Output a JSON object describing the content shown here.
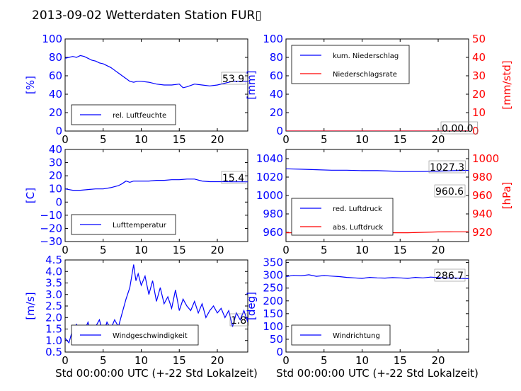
{
  "title": "2013-09-02 Wetterdaten Station FUR▯",
  "xlabel": "Std 00:00:00 UTC (+-22 Std Lokalzeit)",
  "colors": {
    "blue": "#0000ff",
    "red": "#ff0000",
    "axis": "#000000"
  },
  "chart_data": [
    {
      "type": "line",
      "id": "humidity",
      "ylabel": "[%]",
      "xlim": [
        0,
        24
      ],
      "ylim": [
        0,
        100
      ],
      "xticks": [
        "0",
        "5",
        "10",
        "15",
        "20"
      ],
      "yticks": [
        "0",
        "20",
        "40",
        "60",
        "80",
        "100"
      ],
      "legend": [
        "rel. Luftfeuchte"
      ],
      "legend_position": "lower-left",
      "annotation": "53.9",
      "series": [
        {
          "name": "rel. Luftfeuchte",
          "color": "#0000ff",
          "x": [
            0,
            0.5,
            1,
            1.5,
            2,
            2.5,
            3,
            3.5,
            4,
            4.5,
            5,
            5.5,
            6,
            6.5,
            7,
            7.5,
            8,
            8.5,
            9,
            9.5,
            10,
            11,
            12,
            13,
            14,
            15,
            15.5,
            16,
            17,
            18,
            19,
            20,
            21,
            22,
            23,
            24
          ],
          "y": [
            79,
            80,
            81,
            80,
            82,
            81,
            79,
            77,
            76,
            74,
            73,
            71,
            69,
            66,
            63,
            60,
            57,
            54,
            53,
            54,
            54,
            53,
            51,
            50,
            50,
            51,
            47,
            48,
            51,
            50,
            49,
            50,
            52,
            54,
            54,
            54
          ]
        }
      ]
    },
    {
      "type": "line",
      "id": "precip",
      "ylabel": "[mm]",
      "ylabel_right": "[mm/std]",
      "xlim": [
        0,
        24
      ],
      "ylim": [
        0,
        100
      ],
      "ylim_right": [
        0,
        50
      ],
      "xticks": [
        "0",
        "5",
        "10",
        "15",
        "20"
      ],
      "yticks": [
        "0",
        "20",
        "40",
        "60",
        "80",
        "100"
      ],
      "yticks_right": [
        "0",
        "10",
        "20",
        "30",
        "40",
        "50"
      ],
      "legend": [
        "kum. Niederschlag",
        "Niederschlagsrate"
      ],
      "legend_position": "top-left",
      "annotation": "0.00.0",
      "series": [
        {
          "name": "kum. Niederschlag",
          "color": "#0000ff",
          "x": [
            0,
            24
          ],
          "y": [
            0,
            0
          ]
        },
        {
          "name": "Niederschlagsrate",
          "color": "#ff0000",
          "x": [
            0,
            24
          ],
          "y": [
            0,
            0
          ]
        }
      ]
    },
    {
      "type": "line",
      "id": "temperature",
      "ylabel": "[C]",
      "xlim": [
        0,
        24
      ],
      "ylim": [
        -30,
        40
      ],
      "xticks": [
        "0",
        "5",
        "10",
        "15",
        "20"
      ],
      "yticks": [
        "−30",
        "−20",
        "−10",
        "0",
        "10",
        "20",
        "30",
        "40"
      ],
      "legend": [
        "Lufttemperatur"
      ],
      "legend_position": "lower-left",
      "annotation": "15.4",
      "series": [
        {
          "name": "Lufttemperatur",
          "color": "#0000ff",
          "x": [
            0,
            1,
            2,
            3,
            4,
            5,
            6,
            7,
            7.5,
            8,
            8.5,
            9,
            10,
            11,
            12,
            13,
            14,
            15,
            16,
            17,
            18,
            19,
            20,
            21,
            22,
            23,
            24
          ],
          "y": [
            10,
            9,
            9,
            9.5,
            10,
            10,
            11,
            12.5,
            14,
            16,
            15,
            16,
            16,
            16,
            16.5,
            16.5,
            17,
            17,
            17.5,
            17.5,
            16,
            15.5,
            15.5,
            15.5,
            15.4,
            15.4,
            15.4
          ]
        }
      ]
    },
    {
      "type": "line",
      "id": "pressure",
      "ylabel_right": "[hPa]",
      "xlim": [
        0,
        24
      ],
      "ylim": [
        950,
        1050
      ],
      "ylim_right": [
        910,
        1010
      ],
      "xticks": [
        "0",
        "5",
        "10",
        "15",
        "20"
      ],
      "yticks": [
        "960",
        "980",
        "1000",
        "1020",
        "1040"
      ],
      "yticks_right": [
        "920",
        "940",
        "960",
        "980",
        "1000"
      ],
      "legend": [
        "red. Luftdruck",
        "abs. Luftdruck"
      ],
      "legend_position": "lower-left",
      "annotation": "1027.3",
      "annotation2": "960.6",
      "series": [
        {
          "name": "red. Luftdruck",
          "color": "#0000ff",
          "x": [
            0,
            2,
            4,
            6,
            8,
            10,
            12,
            14,
            15,
            16,
            18,
            20,
            22,
            24
          ],
          "y": [
            1029,
            1028.5,
            1028,
            1027.5,
            1027.5,
            1027,
            1027,
            1026.5,
            1026,
            1026,
            1026,
            1026.5,
            1027,
            1027.3
          ]
        },
        {
          "name": "abs. Luftdruck",
          "color": "#ff0000",
          "x": [
            0,
            2,
            4,
            6,
            8,
            10,
            12,
            14,
            16,
            18,
            20,
            22,
            24
          ],
          "y": [
            959.5,
            959.5,
            959.5,
            959.5,
            960,
            960,
            959.5,
            959.5,
            959.5,
            960,
            960.5,
            960.6,
            960.6
          ]
        }
      ]
    },
    {
      "type": "line",
      "id": "wind",
      "ylabel": "[m/s]",
      "xlim": [
        0,
        24
      ],
      "ylim": [
        0.5,
        4.5
      ],
      "xticks": [
        "0",
        "5",
        "10",
        "15",
        "20"
      ],
      "yticks": [
        "0.5",
        "1.0",
        "1.5",
        "2.0",
        "2.5",
        "3.0",
        "3.5",
        "4.0",
        "4.5"
      ],
      "legend": [
        "Windgeschwindigkeit"
      ],
      "legend_position": "lower-left",
      "annotation": "1.8",
      "series": [
        {
          "name": "Windgeschwindigkeit",
          "color": "#0000ff",
          "x": [
            0,
            0.5,
            1,
            1.5,
            2,
            2.5,
            3,
            3.5,
            4,
            4.5,
            5,
            5.5,
            6,
            6.5,
            7,
            7.5,
            8,
            8.5,
            9,
            9.3,
            9.6,
            10,
            10.5,
            11,
            11.5,
            12,
            12.5,
            13,
            13.5,
            14,
            14.5,
            15,
            15.5,
            16,
            16.5,
            17,
            17.5,
            18,
            18.5,
            19,
            19.5,
            20,
            20.5,
            21,
            21.5,
            22,
            22.5,
            23,
            23.5,
            24
          ],
          "y": [
            1.1,
            0.9,
            1.5,
            1.7,
            1.0,
            1.4,
            1.8,
            1.2,
            1.6,
            1.9,
            1.3,
            1.8,
            1.5,
            1.9,
            1.6,
            2.2,
            2.8,
            3.3,
            4.3,
            3.6,
            3.9,
            3.4,
            3.8,
            3.0,
            3.6,
            2.7,
            3.3,
            2.6,
            2.9,
            2.4,
            3.2,
            2.3,
            2.8,
            2.5,
            2.3,
            2.7,
            2.2,
            2.6,
            2.0,
            2.3,
            2.5,
            2.2,
            2.4,
            2.0,
            2.3,
            1.6,
            2.2,
            1.9,
            2.3,
            1.8
          ]
        }
      ]
    },
    {
      "type": "line",
      "id": "winddir",
      "ylabel": "[deg]",
      "xlim": [
        0,
        24
      ],
      "ylim": [
        0,
        360
      ],
      "xticks": [
        "0",
        "5",
        "10",
        "15",
        "20"
      ],
      "yticks": [
        "0",
        "50",
        "100",
        "150",
        "200",
        "250",
        "300",
        "350"
      ],
      "legend": [
        "Windrichtung"
      ],
      "legend_position": "lower-left",
      "annotation": "286.7",
      "series": [
        {
          "name": "Windrichtung",
          "color": "#0000ff",
          "x": [
            0,
            1,
            2,
            3,
            4,
            5,
            6,
            7,
            8,
            9,
            10,
            11,
            12,
            13,
            14,
            15,
            16,
            17,
            18,
            19,
            20,
            21,
            22,
            23,
            24
          ],
          "y": [
            295,
            300,
            298,
            302,
            296,
            299,
            297,
            295,
            292,
            290,
            288,
            292,
            290,
            289,
            291,
            290,
            288,
            292,
            290,
            293,
            291,
            289,
            290,
            288,
            287
          ]
        }
      ]
    }
  ]
}
